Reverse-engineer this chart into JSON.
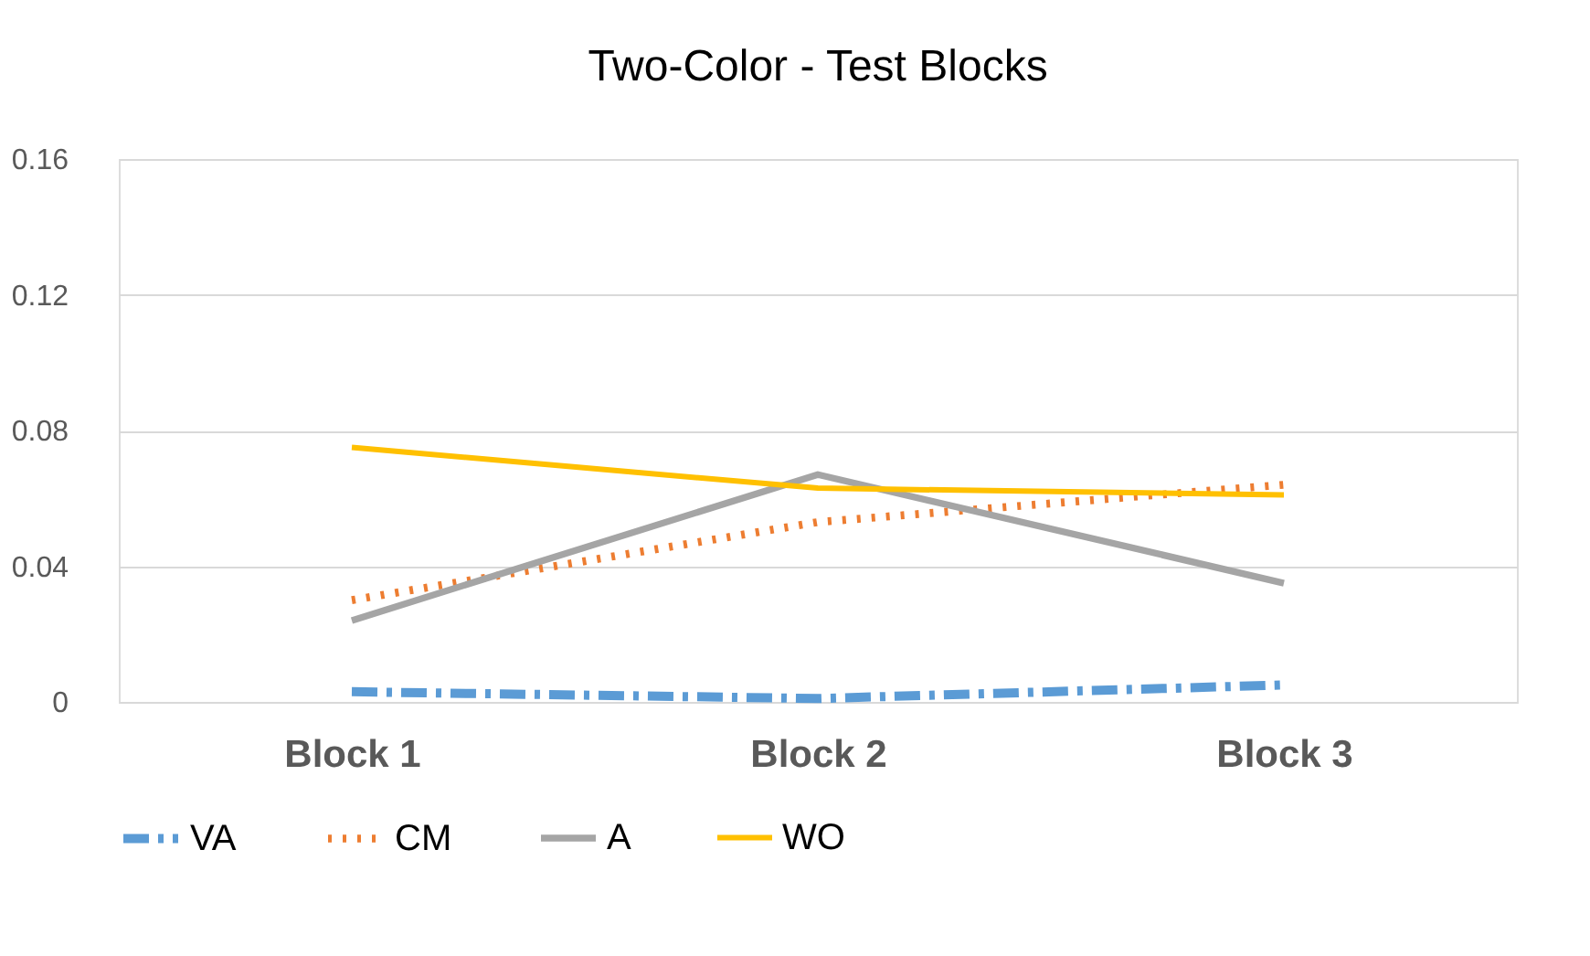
{
  "chart_data": {
    "type": "line",
    "title": "Two-Color - Test Blocks",
    "categories": [
      "Block 1",
      "Block 2",
      "Block 3"
    ],
    "series": [
      {
        "name": "VA",
        "color": "#5b9bd5",
        "values": [
          0.003,
          0.001,
          0.005
        ],
        "line_style": "dashed"
      },
      {
        "name": "CM",
        "color": "#ed7d31",
        "values": [
          0.03,
          0.053,
          0.064
        ],
        "line_style": "dotted"
      },
      {
        "name": "A",
        "color": "#a5a5a5",
        "values": [
          0.024,
          0.067,
          0.035
        ],
        "line_style": "solid"
      },
      {
        "name": "WO",
        "color": "#ffc000",
        "values": [
          0.075,
          0.063,
          0.061
        ],
        "line_style": "solid"
      }
    ],
    "ylim": [
      0,
      0.16
    ],
    "yticks": [
      0,
      0.04,
      0.08,
      0.12,
      0.16
    ],
    "grid": "y",
    "legend": "bottom",
    "marker": "none"
  }
}
